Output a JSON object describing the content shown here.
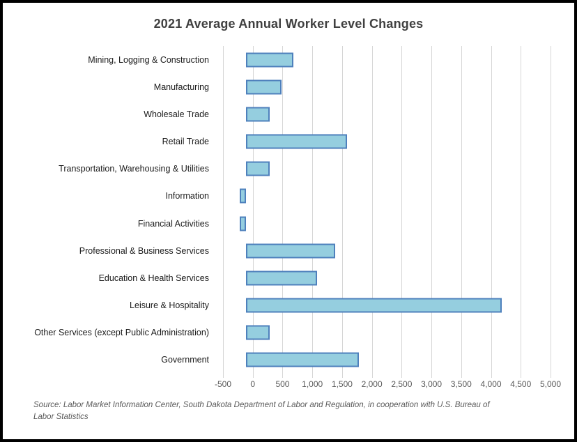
{
  "title": "2021 Average Annual Worker Level Changes",
  "source_note": "Source: Labor Market Information Center, South Dakota Department of Labor and Regulation, in cooperation with U.S. Bureau of Labor Statistics",
  "colors": {
    "bar_fill": "#95cedf",
    "bar_border": "#4e80bc",
    "gridline": "#d6d6d6",
    "title_text": "#404040",
    "tick_text": "#595959",
    "category_text": "#1a1a1a",
    "frame_border": "#000000"
  },
  "chart_data": {
    "type": "bar",
    "orientation": "horizontal",
    "title": "2021 Average Annual Worker Level Changes",
    "categories": [
      "Mining, Logging & Construction",
      "Manufacturing",
      "Wholesale Trade",
      "Retail Trade",
      "Transportation, Warehousing & Utilities",
      "Information",
      "Financial Activities",
      "Professional & Business Services",
      "Education & Health Services",
      "Leisure & Hospitality",
      "Other Services (except Public Administration)",
      "Government"
    ],
    "values": [
      800,
      600,
      400,
      1700,
      400,
      -100,
      -100,
      1500,
      1200,
      4300,
      400,
      1900
    ],
    "xlim": [
      -500,
      5000
    ],
    "xticks": [
      -500,
      0,
      500,
      1000,
      1500,
      2000,
      2500,
      3000,
      3500,
      4000,
      4500,
      5000
    ],
    "xtick_labels": [
      "-500",
      "0",
      "500",
      "1,000",
      "1,500",
      "2,000",
      "2,500",
      "3,000",
      "3,500",
      "4,000",
      "4,500",
      "5,000"
    ],
    "grid": "vertical",
    "legend": "none",
    "xlabel": "",
    "ylabel": ""
  }
}
